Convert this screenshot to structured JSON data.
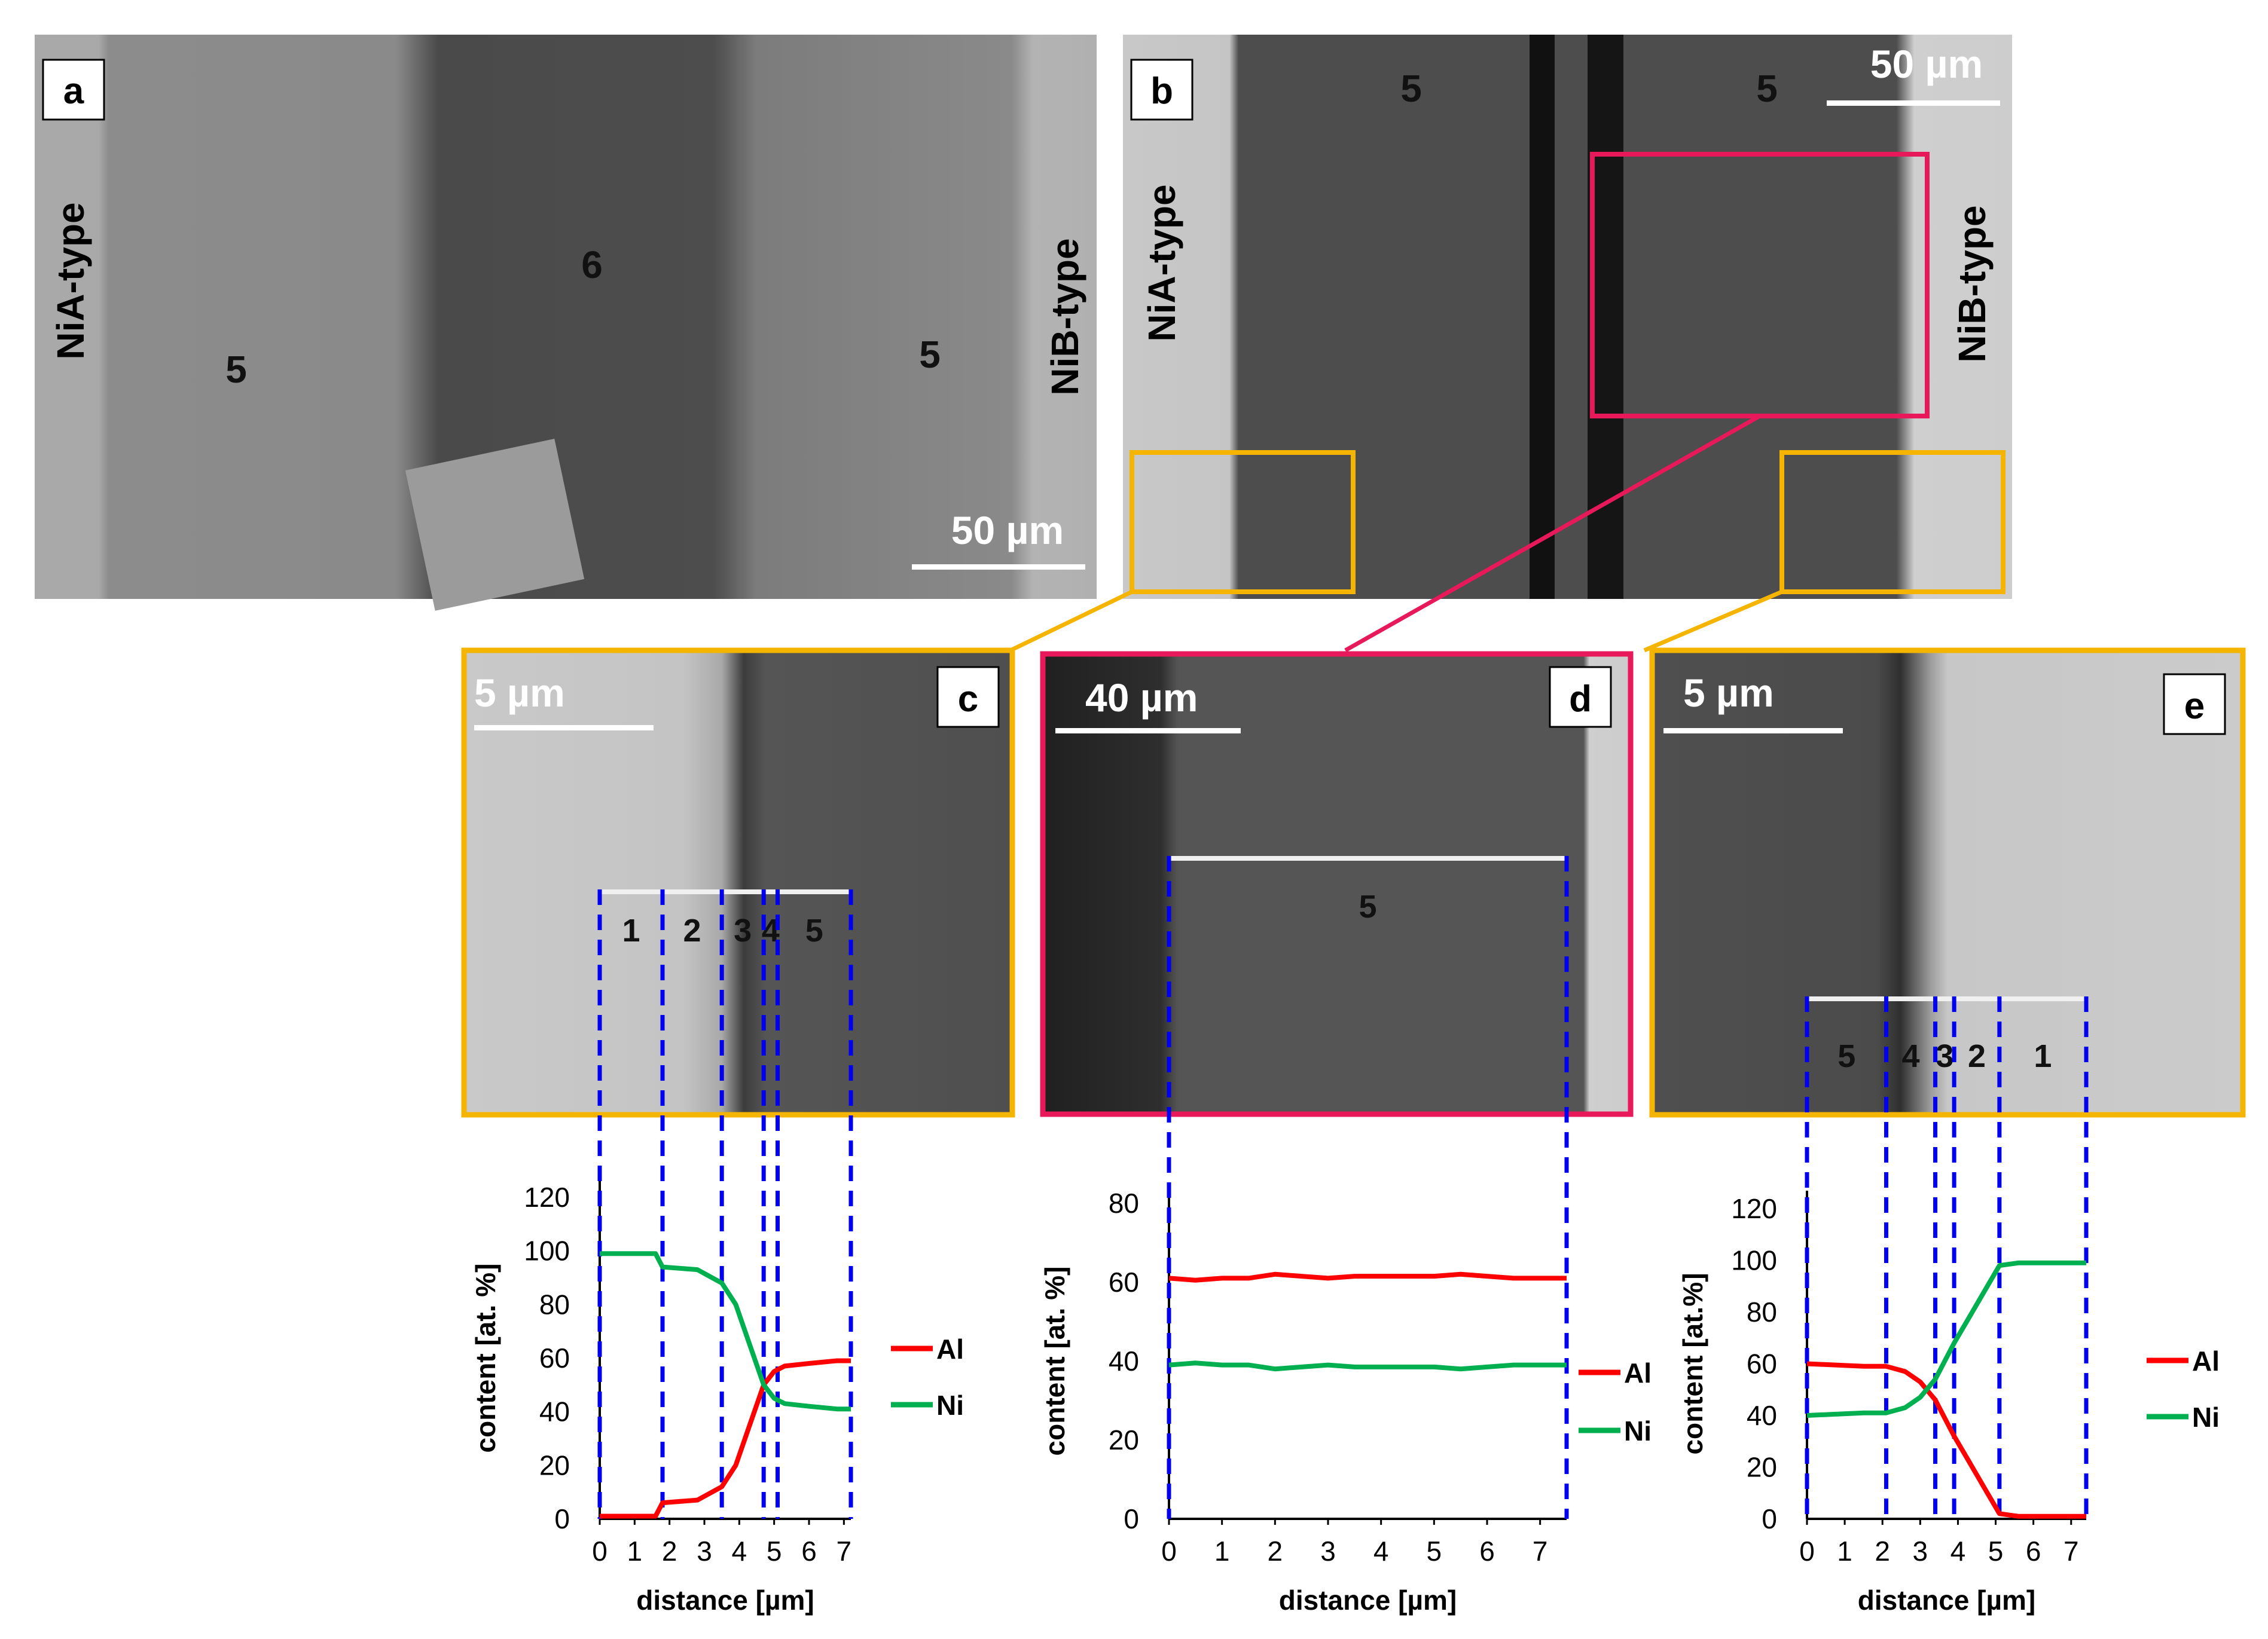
{
  "panels": {
    "a": {
      "label": "a",
      "scalebar": "50 µm",
      "phase_labels": [
        "5",
        "6",
        "5"
      ],
      "side_left": "NiA-type",
      "side_right": "NiB-type"
    },
    "b": {
      "label": "b",
      "scalebar": "50 µm",
      "phase_labels": [
        "5",
        "5"
      ],
      "side_left": "NiA-type",
      "side_right": "NiB-type"
    },
    "c": {
      "label": "c",
      "scalebar": "5 µm",
      "zones": [
        "1",
        "2",
        "3",
        "4",
        "5"
      ]
    },
    "d": {
      "label": "d",
      "scalebar": "40 µm",
      "zones": [
        "5"
      ]
    },
    "e": {
      "label": "e",
      "scalebar": "5 µm",
      "zones": [
        "5",
        "4",
        "3",
        "2",
        "1"
      ]
    }
  },
  "colors": {
    "frame_yellow": "#f5b400",
    "frame_magenta": "#e8195a",
    "al": "#ff0000",
    "ni": "#00b050",
    "divider": "#0000ee"
  },
  "chart_data": [
    {
      "type": "line",
      "panel": "c",
      "xlabel": "distance [µm]",
      "ylabel": "content [at. %]",
      "xlim": [
        0,
        7.2
      ],
      "ylim": [
        0,
        120
      ],
      "x_ticks": [
        "0",
        "1",
        "2",
        "3",
        "4",
        "5",
        "6",
        "7"
      ],
      "y_ticks": [
        "0",
        "20",
        "40",
        "60",
        "80",
        "100",
        "120"
      ],
      "legend": "right",
      "zone_boundaries": [
        0,
        1.8,
        3.5,
        4.7,
        5.1,
        7.2
      ],
      "series": [
        {
          "name": "Al",
          "color": "#ff0000",
          "x": [
            0,
            1.6,
            1.8,
            2.8,
            3.5,
            3.9,
            4.3,
            4.7,
            5.0,
            5.3,
            6.0,
            6.8,
            7.2
          ],
          "y": [
            1,
            1,
            6,
            7,
            12,
            20,
            35,
            50,
            55,
            57,
            58,
            59,
            59
          ]
        },
        {
          "name": "Ni",
          "color": "#00b050",
          "x": [
            0,
            1.6,
            1.8,
            2.8,
            3.5,
            3.9,
            4.3,
            4.7,
            5.0,
            5.3,
            6.0,
            6.8,
            7.2
          ],
          "y": [
            99,
            99,
            94,
            93,
            88,
            80,
            65,
            50,
            45,
            43,
            42,
            41,
            41
          ]
        }
      ]
    },
    {
      "type": "line",
      "panel": "d",
      "xlabel": "distance [µm]",
      "ylabel": "content [at. %]",
      "xlim": [
        0,
        7.5
      ],
      "ylim": [
        0,
        80
      ],
      "x_ticks": [
        "0",
        "1",
        "2",
        "3",
        "4",
        "5",
        "6",
        "7"
      ],
      "y_ticks": [
        "0",
        "20",
        "40",
        "60",
        "80"
      ],
      "legend": "right",
      "zone_boundaries": [
        0,
        7.5
      ],
      "series": [
        {
          "name": "Al",
          "color": "#ff0000",
          "x": [
            0,
            0.5,
            1,
            1.5,
            2,
            2.5,
            3,
            3.5,
            4,
            4.5,
            5,
            5.5,
            6,
            6.5,
            7,
            7.5
          ],
          "y": [
            61,
            60.5,
            61,
            61,
            62,
            61.5,
            61,
            61.5,
            61.5,
            61.5,
            61.5,
            62,
            61.5,
            61,
            61,
            61
          ]
        },
        {
          "name": "Ni",
          "color": "#00b050",
          "x": [
            0,
            0.5,
            1,
            1.5,
            2,
            2.5,
            3,
            3.5,
            4,
            4.5,
            5,
            5.5,
            6,
            6.5,
            7,
            7.5
          ],
          "y": [
            39,
            39.5,
            39,
            39,
            38,
            38.5,
            39,
            38.5,
            38.5,
            38.5,
            38.5,
            38,
            38.5,
            39,
            39,
            39
          ]
        }
      ]
    },
    {
      "type": "line",
      "panel": "e",
      "xlabel": "distance [µm]",
      "ylabel": "content [at.%]",
      "xlim": [
        0,
        7.4
      ],
      "ylim": [
        0,
        120
      ],
      "x_ticks": [
        "0",
        "1",
        "2",
        "3",
        "4",
        "5",
        "6",
        "7"
      ],
      "y_ticks": [
        "0",
        "20",
        "40",
        "60",
        "80",
        "100",
        "120"
      ],
      "legend": "right",
      "zone_boundaries": [
        0,
        2.1,
        3.4,
        3.9,
        5.1,
        7.4
      ],
      "series": [
        {
          "name": "Al",
          "color": "#ff0000",
          "x": [
            0,
            1.5,
            2.1,
            2.6,
            3.0,
            3.4,
            3.9,
            4.3,
            4.7,
            5.1,
            5.6,
            6.5,
            7.4
          ],
          "y": [
            60,
            59,
            59,
            57,
            53,
            46,
            32,
            22,
            12,
            2,
            1,
            1,
            1
          ]
        },
        {
          "name": "Ni",
          "color": "#00b050",
          "x": [
            0,
            1.5,
            2.1,
            2.6,
            3.0,
            3.4,
            3.9,
            4.3,
            4.7,
            5.1,
            5.6,
            6.5,
            7.4
          ],
          "y": [
            40,
            41,
            41,
            43,
            47,
            54,
            68,
            78,
            88,
            98,
            99,
            99,
            99
          ]
        }
      ]
    }
  ]
}
